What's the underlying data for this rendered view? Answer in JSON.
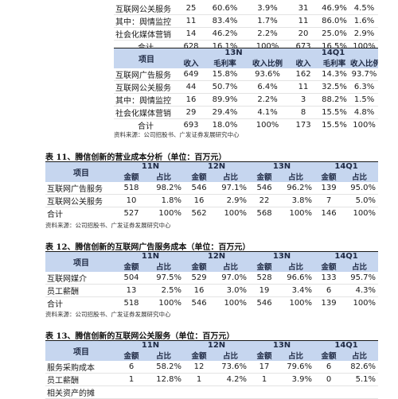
{
  "t10_top_rows": [
    {
      "label": "互联网公关服务",
      "c": [
        "25",
        "60.6%",
        "3.9%",
        "31",
        "46.9%",
        "4.5%"
      ]
    },
    {
      "label": "其中：舆情监控",
      "c": [
        "11",
        "83.4%",
        "1.7%",
        "11",
        "86.0%",
        "1.6%"
      ]
    },
    {
      "label": "社会化媒体营销",
      "c": [
        "14",
        "46.2%",
        "2.2%",
        "20",
        "25.0%",
        "2.9%"
      ]
    },
    {
      "label": "合计",
      "c": [
        "628",
        "16.1%",
        "100%",
        "673",
        "16.5%",
        "100%"
      ]
    }
  ],
  "t10b": {
    "item_header": "项目",
    "periods": [
      "13N",
      "14Q1"
    ],
    "sub": [
      "收入",
      "毛利率",
      "收入比例",
      "收入",
      "毛利率",
      "收入比例"
    ],
    "rows": [
      {
        "label": "互联网广告服务",
        "c": [
          "649",
          "15.8%",
          "93.6%",
          "162",
          "14.3%",
          "93.7%"
        ]
      },
      {
        "label": "互联网公关服务",
        "c": [
          "44",
          "50.7%",
          "6.4%",
          "11",
          "32.5%",
          "6.3%"
        ]
      },
      {
        "label": "其中：舆情监控",
        "c": [
          "16",
          "89.9%",
          "2.2%",
          "3",
          "88.2%",
          "1.5%"
        ]
      },
      {
        "label": "社会化媒体营销",
        "c": [
          "29",
          "29.4%",
          "4.1%",
          "8",
          "15.5%",
          "4.8%"
        ]
      },
      {
        "label": "合计",
        "c": [
          "693",
          "18.0%",
          "100%",
          "173",
          "15.5%",
          "100%"
        ]
      }
    ],
    "source": "资料来源：公司招股书、广发证券发展研究中心"
  },
  "t11": {
    "caption": "表 11、腾信创新的营业成本分析（单位：百万元）",
    "item_header": "项目",
    "periods": [
      "11N",
      "12N",
      "13N",
      "14Q1"
    ],
    "sub": [
      "金额",
      "占比",
      "金额",
      "占比",
      "金额",
      "占比",
      "金额",
      "占比"
    ],
    "rows": [
      {
        "label": "互联网广告服务",
        "c": [
          "518",
          "98.2%",
          "546",
          "97.1%",
          "546",
          "96.2%",
          "139",
          "95.0%"
        ]
      },
      {
        "label": "互联网公关服务",
        "c": [
          "10",
          "1.8%",
          "16",
          "2.9%",
          "22",
          "3.8%",
          "7",
          "5.0%"
        ]
      },
      {
        "label": "合计",
        "c": [
          "527",
          "100%",
          "562",
          "100%",
          "568",
          "100%",
          "146",
          "100%"
        ]
      }
    ],
    "source": "资料来源：公司招股书、广发证券发展研究中心"
  },
  "t12": {
    "caption": "表 12、腾信创新的互联网广告服务成本（单位：百万元）",
    "item_header": "项目",
    "periods": [
      "11N",
      "12N",
      "13N",
      "14Q1"
    ],
    "sub": [
      "金额",
      "占比",
      "金额",
      "占比",
      "金额",
      "占比",
      "金额",
      "占比"
    ],
    "rows": [
      {
        "label": "互联网媒介",
        "c": [
          "504",
          "97.5%",
          "529",
          "97.0%",
          "528",
          "96.6%",
          "133",
          "95.7%"
        ]
      },
      {
        "label": "员工薪酬",
        "c": [
          "13",
          "2.5%",
          "16",
          "3.0%",
          "19",
          "3.4%",
          "6",
          "4.3%"
        ]
      },
      {
        "label": "合计",
        "c": [
          "518",
          "100%",
          "546",
          "100%",
          "546",
          "100%",
          "139",
          "100%"
        ]
      }
    ],
    "source": "资料来源：公司招股书、广发证券发展研究中心"
  },
  "t13": {
    "caption": "表 13、腾信创新的互联网公关服务（单位：百万元）",
    "item_header": "项目",
    "periods": [
      "11N",
      "12N",
      "13N",
      "14Q1"
    ],
    "sub": [
      "金额",
      "占比",
      "金额",
      "占比",
      "金额",
      "占比",
      "金额",
      "占比"
    ],
    "rows": [
      {
        "label": "服务采购成本",
        "c": [
          "6",
          "58.2%",
          "12",
          "73.6%",
          "17",
          "79.6%",
          "6",
          "82.6%"
        ]
      },
      {
        "label": "员工薪酬",
        "c": [
          "1",
          "12.8%",
          "1",
          "4.2%",
          "1",
          "3.9%",
          "0",
          "5.1%"
        ]
      },
      {
        "label": "相关资产的摊",
        "c": [
          "",
          "",
          "",
          "",
          "",
          "",
          "",
          ""
        ]
      }
    ]
  }
}
